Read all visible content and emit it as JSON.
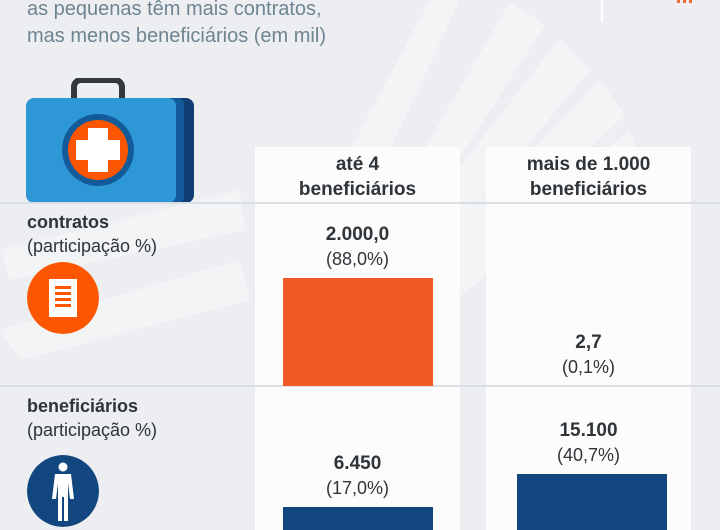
{
  "header": {
    "subtitle_line1": "as pequenas têm mais contratos,",
    "subtitle_line2": "mas menos beneficiários (em mil)"
  },
  "icons": {
    "header_illustration": "medical-kit-icon",
    "contracts": "document-icon",
    "beneficiaries": "person-icon"
  },
  "colors": {
    "background": "#eceef1",
    "panel": "#fcfcfd",
    "contracts_bar": "#f05a22",
    "beneficiaries_bar": "#12467e",
    "subtitle": "#6e8591",
    "kit_body": "#2e97d6",
    "kit_side": "#135a9a",
    "accent_orange": "#fc5600"
  },
  "rows": [
    {
      "title": "contratos",
      "subtitle": "(participação %)"
    },
    {
      "title": "beneficiários",
      "subtitle": "(participação %)"
    }
  ],
  "chart_data": {
    "type": "bar",
    "title": "as pequenas têm mais contratos, mas menos beneficiários (em mil)",
    "categories": [
      "até 4 beneficiários",
      "mais de 1.000 beneficiários"
    ],
    "category_lines": [
      [
        "até 4",
        "beneficiários"
      ],
      [
        "mais de 1.000",
        "beneficiários"
      ]
    ],
    "units": "mil",
    "series": [
      {
        "name": "contratos",
        "values": [
          2000.0,
          2.7
        ],
        "labels": [
          "2.000,0",
          "2,7"
        ],
        "shares_pct": [
          88.0,
          0.1
        ],
        "share_labels": [
          "(88,0%)",
          "(0,1%)"
        ]
      },
      {
        "name": "beneficiários",
        "values": [
          6450,
          15100
        ],
        "labels": [
          "6.450",
          "15.100"
        ],
        "shares_pct": [
          17.0,
          40.7
        ],
        "share_labels": [
          "(17,0%)",
          "(40,7%)"
        ]
      }
    ],
    "xlabel": "",
    "ylabel": "",
    "grid": false,
    "legend": "none"
  }
}
